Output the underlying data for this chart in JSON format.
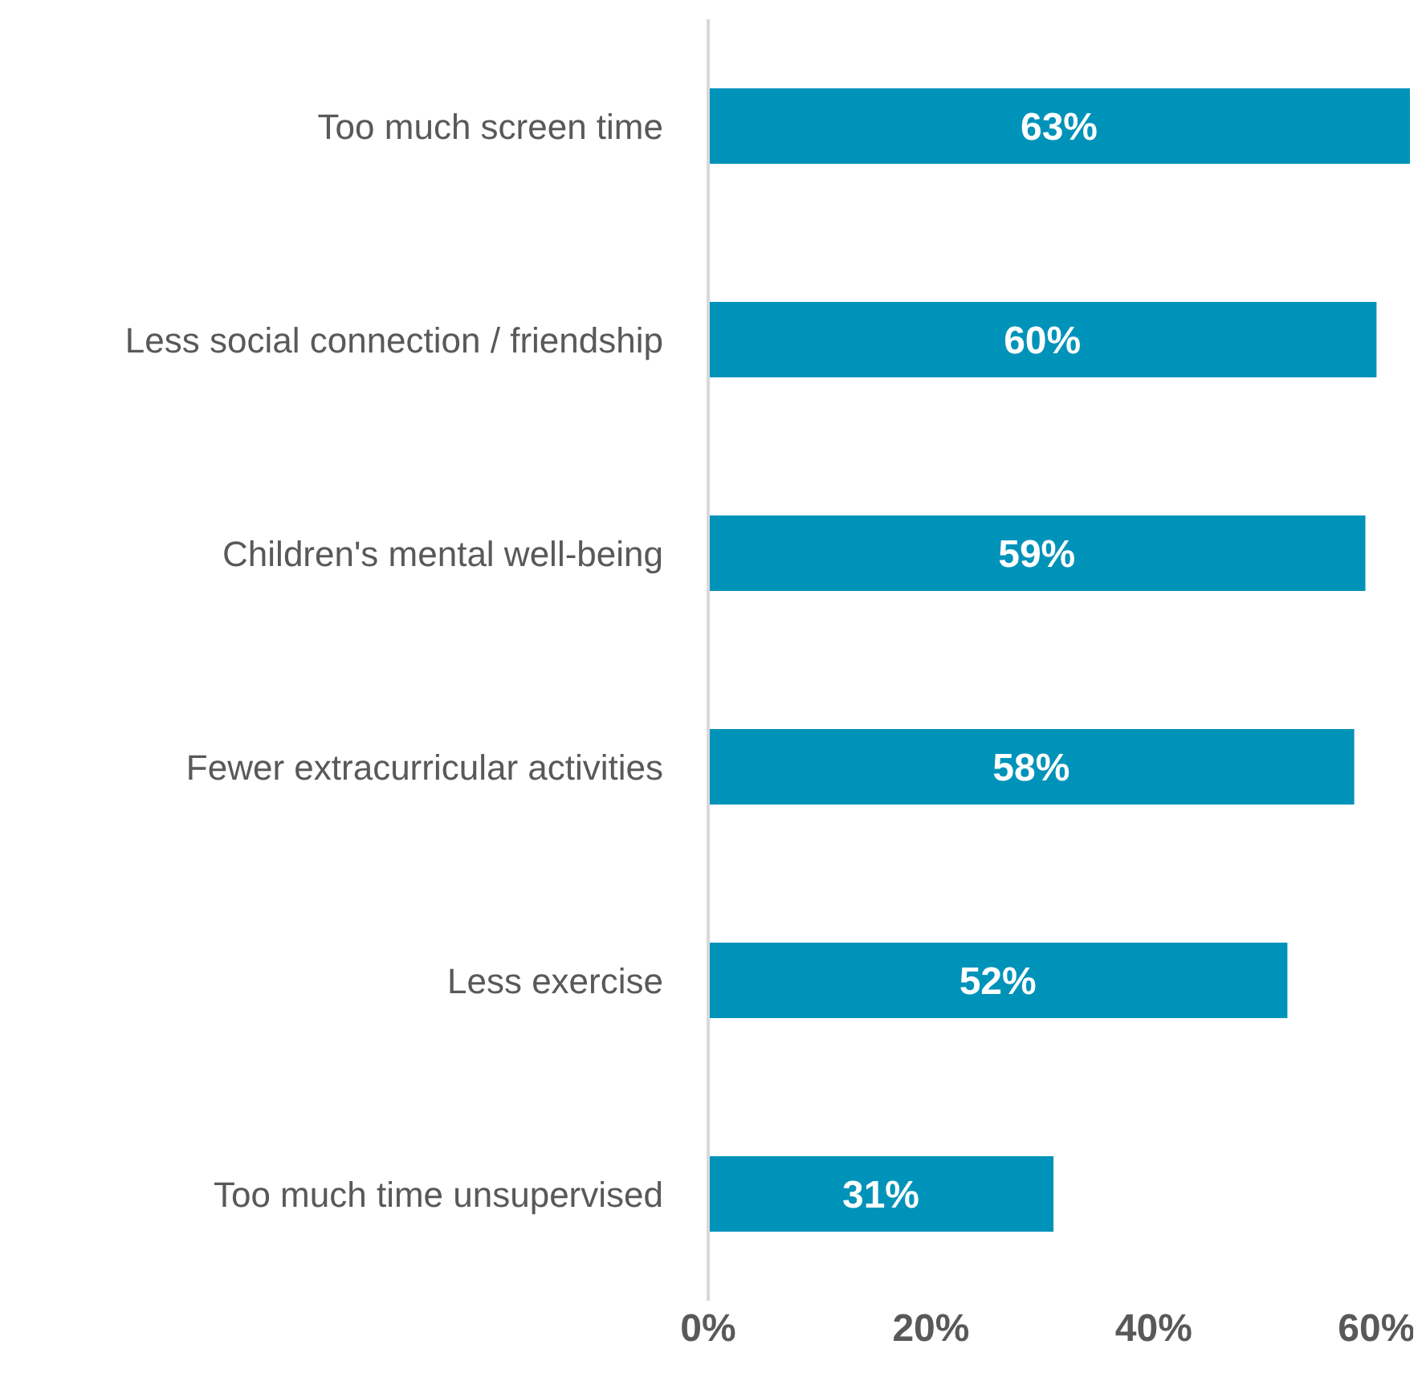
{
  "chart_data": {
    "type": "bar",
    "orientation": "horizontal",
    "categories": [
      "Too much screen time",
      "Less social connection / friendship",
      "Children's mental well-being",
      "Fewer extracurricular activities",
      "Less exercise",
      "Too much time unsupervised"
    ],
    "values": [
      63,
      60,
      59,
      58,
      52,
      31
    ],
    "value_labels": [
      "63%",
      "60%",
      "59%",
      "58%",
      "52%",
      "31%"
    ],
    "color": "#0093b9",
    "xlim": [
      0,
      63
    ],
    "xticks": [
      {
        "value": 0,
        "label": "0%"
      },
      {
        "value": 20,
        "label": "20%"
      },
      {
        "value": 40,
        "label": "40%"
      },
      {
        "value": 60,
        "label": "60%"
      }
    ],
    "grid": false,
    "legend": false
  }
}
